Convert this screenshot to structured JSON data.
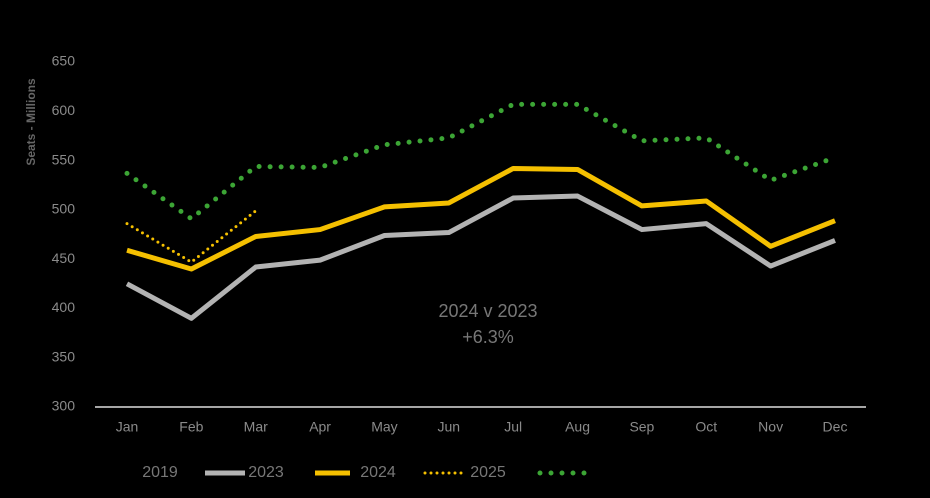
{
  "chart_data": {
    "type": "line",
    "y_label": "Seats - Millions",
    "annotation": [
      "2024 v 2023",
      "+6.3%"
    ],
    "categories": [
      "Jan",
      "Feb",
      "Mar",
      "Apr",
      "May",
      "Jun",
      "Jul",
      "Aug",
      "Sep",
      "Oct",
      "Nov",
      "Dec"
    ],
    "series": [
      {
        "name": "2019",
        "color": "#3ca535",
        "style": "dotted",
        "values": [
          537,
          491,
          544,
          543,
          566,
          573,
          607,
          607,
          570,
          573,
          530,
          553
        ]
      },
      {
        "name": "2023",
        "color": "#b3b3b3",
        "style": "solid",
        "values": [
          425,
          390,
          442,
          449,
          474,
          477,
          512,
          514,
          480,
          486,
          443,
          469
        ]
      },
      {
        "name": "2024",
        "color": "#f5c000",
        "style": "solid",
        "values": [
          459,
          440,
          473,
          480,
          503,
          507,
          542,
          541,
          504,
          509,
          463,
          489
        ]
      },
      {
        "name": "2025",
        "color": "#f5c000",
        "style": "dotted-small",
        "values": [
          486,
          447,
          499,
          null,
          null,
          null,
          null,
          null,
          null,
          null,
          null,
          null
        ]
      }
    ],
    "ylim": [
      300,
      650
    ],
    "yticks": [
      300,
      350,
      400,
      450,
      500,
      550,
      600,
      650
    ],
    "grid": false
  }
}
